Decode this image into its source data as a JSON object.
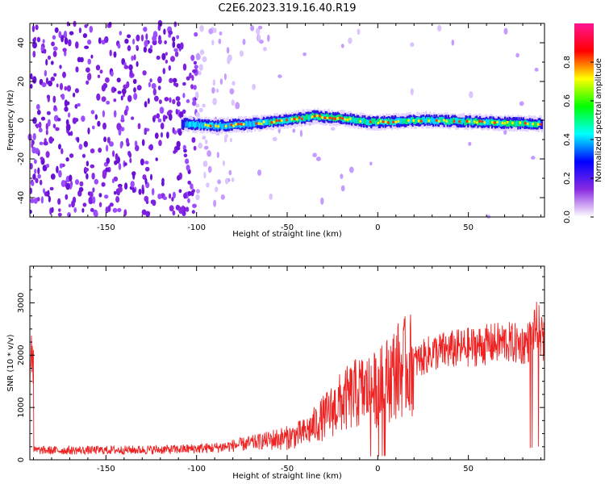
{
  "figure": {
    "title": "C2E6.2023.319.16.40.R19"
  },
  "chart_data": [
    {
      "type": "heatmap",
      "title": "C2E6.2023.319.16.40.R19",
      "xlabel": "Height of straight line (km)",
      "ylabel": "Frequency (Hz)",
      "xlim": [
        -192,
        92
      ],
      "ylim": [
        -50,
        50
      ],
      "xticks": [
        -150,
        -100,
        -50,
        0,
        50
      ],
      "yticks": [
        -40,
        -20,
        0,
        20,
        40
      ],
      "colorbar": {
        "label": "Normalized spectral amplitude",
        "range": [
          0,
          1
        ],
        "ticks": [
          0.0,
          0.2,
          0.4,
          0.6,
          0.8
        ],
        "colors": [
          "#ffffff",
          "#8a2be2",
          "#0000ff",
          "#00ffff",
          "#00ff00",
          "#ffff00",
          "#ff0000",
          "#ff1493"
        ]
      },
      "trace": {
        "description_points_x": [
          -105,
          -90,
          -70,
          -50,
          -35,
          -20,
          -5,
          0,
          25,
          60,
          90
        ],
        "description_points_y": [
          -2,
          -3,
          -2,
          0,
          2,
          1,
          -1,
          -1,
          0,
          -1,
          -2
        ]
      }
    },
    {
      "type": "line",
      "xlabel": "Height of straight line (km)",
      "ylabel": "SNR (10 * v/v)",
      "xlim": [
        -192,
        92
      ],
      "ylim": [
        0,
        3700
      ],
      "xticks": [
        -150,
        -100,
        -50,
        0,
        50
      ],
      "yticks": [
        0,
        1000,
        2000,
        3000
      ],
      "series": [
        {
          "color": "#ee2222",
          "x": [
            -190,
            -170,
            -150,
            -130,
            -110,
            -90,
            -80,
            -70,
            -60,
            -50,
            -40,
            -30,
            -20,
            -10,
            0,
            10,
            20,
            30,
            40,
            50,
            60,
            70,
            80,
            85,
            88,
            92
          ],
          "y": [
            180,
            180,
            185,
            190,
            200,
            230,
            270,
            320,
            380,
            420,
            520,
            800,
            1100,
            1300,
            1350,
            1700,
            1850,
            2050,
            2100,
            2150,
            2200,
            2250,
            2200,
            2300,
            2600,
            2200
          ]
        }
      ]
    }
  ]
}
